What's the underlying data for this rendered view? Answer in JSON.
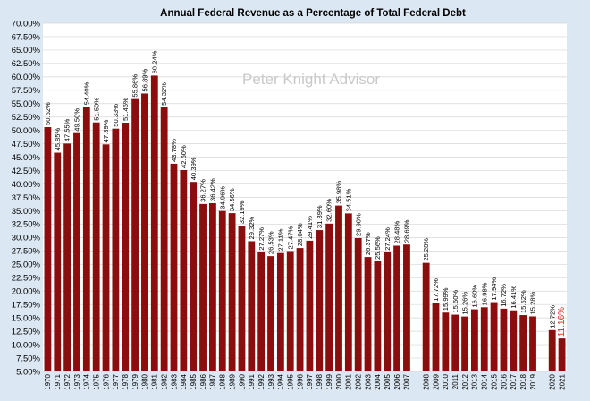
{
  "chart_data": {
    "type": "bar",
    "title": "Annual Federal Revenue as a Percentage of Total Federal Debt",
    "watermark": "Peter Knight Advisor",
    "xlabel": "",
    "ylabel": "",
    "ylim": [
      5,
      70
    ],
    "y_tick_labels": [
      "5.00%",
      "7.50%",
      "10.00%",
      "12.50%",
      "15.00%",
      "17.50%",
      "20.00%",
      "22.50%",
      "25.00%",
      "27.50%",
      "30.00%",
      "32.50%",
      "35.00%",
      "37.50%",
      "40.00%",
      "42.50%",
      "45.00%",
      "47.50%",
      "50.00%",
      "52.50%",
      "55.00%",
      "57.50%",
      "60.00%",
      "62.50%",
      "65.00%",
      "67.50%",
      "70.00%"
    ],
    "grid": true,
    "legend": "none",
    "bar_color": "#8b0d0d",
    "highlight_color": "#e8221e",
    "categories": [
      "1970",
      "1971",
      "1972",
      "1973",
      "1974",
      "1975",
      "1976",
      "1977",
      "1978",
      "1979",
      "1980",
      "1981",
      "1982",
      "1983",
      "1984",
      "1985",
      "1986",
      "1987",
      "1988",
      "1989",
      "1990",
      "1991",
      "1992",
      "1993",
      "1994",
      "1995",
      "1996",
      "1997",
      "1998",
      "1999",
      "2000",
      "2001",
      "2002",
      "2003",
      "2004",
      "2005",
      "2006",
      "2007",
      "",
      "2008",
      "2009",
      "2010",
      "2011",
      "2012",
      "2013",
      "2014",
      "2015",
      "2016",
      "2017",
      "2018",
      "2019",
      "",
      "2020",
      "2021"
    ],
    "values": [
      50.62,
      45.85,
      47.55,
      49.5,
      54.4,
      51.5,
      47.39,
      50.33,
      51.45,
      55.86,
      56.89,
      60.24,
      54.32,
      43.78,
      42.6,
      40.39,
      36.27,
      36.42,
      34.96,
      34.56,
      32.19,
      29.32,
      27.27,
      26.53,
      27.11,
      27.47,
      28.04,
      29.41,
      31.39,
      32.6,
      35.98,
      34.51,
      29.9,
      26.37,
      25.56,
      27.24,
      28.48,
      28.69,
      null,
      25.28,
      17.72,
      15.99,
      15.6,
      15.26,
      16.6,
      16.98,
      17.94,
      16.72,
      16.41,
      15.52,
      15.28,
      null,
      12.72,
      11.16
    ],
    "data_labels": [
      "50.62%",
      "45.85%",
      "47.55%",
      "49.50%",
      "54.40%",
      "51.50%",
      "47.39%",
      "50.33%",
      "51.45%",
      "55.86%",
      "56.89%",
      "60.24%",
      "54.32%",
      "43.78%",
      "42.60%",
      "40.39%",
      "36.27%",
      "36.42%",
      "34.96%",
      "34.56%",
      "32.19%",
      "29.32%",
      "27.27%",
      "26.53%",
      "27.11%",
      "27.47%",
      "28.04%",
      "29.41%",
      "31.39%",
      "32.60%",
      "35.98%",
      "34.51%",
      "29.90%",
      "26.37%",
      "25.56%",
      "27.24%",
      "28.48%",
      "28.69%",
      "",
      "25.28%",
      "17.72%",
      "15.99%",
      "15.60%",
      "15.26%",
      "16.60%",
      "16.98%",
      "17.94%",
      "16.72%",
      "16.41%",
      "15.52%",
      "15.28%",
      "",
      "12.72%",
      "11.16%"
    ],
    "highlight_index": 53
  }
}
